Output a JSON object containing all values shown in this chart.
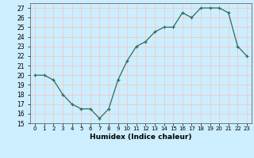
{
  "x": [
    0,
    1,
    2,
    3,
    4,
    5,
    6,
    7,
    8,
    9,
    10,
    11,
    12,
    13,
    14,
    15,
    16,
    17,
    18,
    19,
    20,
    21,
    22,
    23
  ],
  "y": [
    20,
    20,
    19.5,
    18,
    17,
    16.5,
    16.5,
    15.5,
    16.5,
    19.5,
    21.5,
    23,
    23.5,
    24.5,
    25,
    25,
    26.5,
    26,
    27,
    27,
    27,
    26.5,
    23,
    22
  ],
  "line_color": "#2e6b5e",
  "marker": "+",
  "bg_color": "#cceeff",
  "grid_color": "#f0c8c8",
  "xlabel": "Humidex (Indice chaleur)",
  "xlim": [
    -0.5,
    23.5
  ],
  "ylim": [
    15,
    27.5
  ],
  "yticks": [
    15,
    16,
    17,
    18,
    19,
    20,
    21,
    22,
    23,
    24,
    25,
    26,
    27
  ],
  "xticks": [
    0,
    1,
    2,
    3,
    4,
    5,
    6,
    7,
    8,
    9,
    10,
    11,
    12,
    13,
    14,
    15,
    16,
    17,
    18,
    19,
    20,
    21,
    22,
    23
  ],
  "xtick_labels": [
    "0",
    "1",
    "2",
    "3",
    "4",
    "5",
    "6",
    "7",
    "8",
    "9",
    "10",
    "11",
    "12",
    "13",
    "14",
    "15",
    "16",
    "17",
    "18",
    "19",
    "20",
    "21",
    "22",
    "23"
  ]
}
